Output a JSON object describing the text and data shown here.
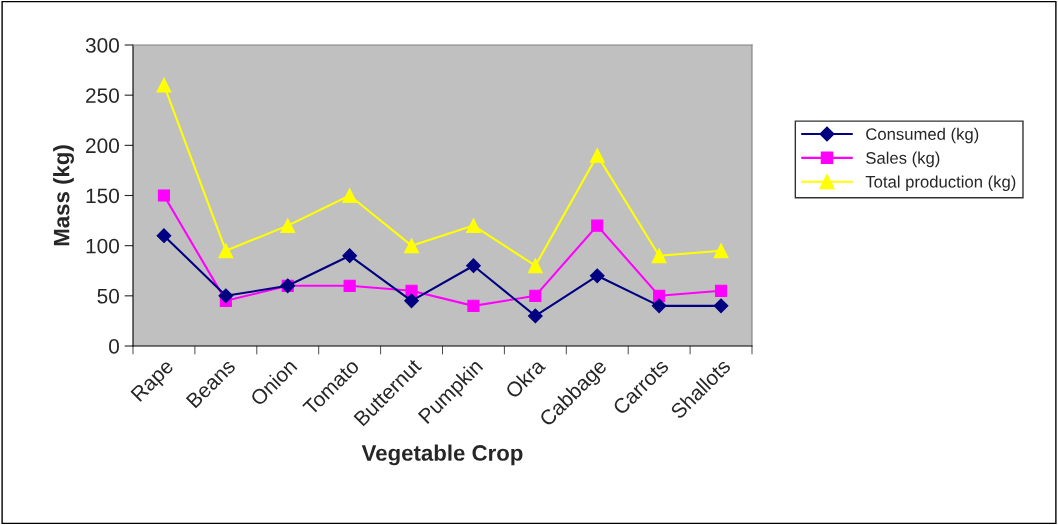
{
  "chart_data": {
    "type": "line",
    "xlabel": "Vegetable Crop",
    "ylabel": "Mass (kg)",
    "categories": [
      "Rape",
      "Beans",
      "Onion",
      "Tomato",
      "Butternut",
      "Pumpkin",
      "Okra",
      "Cabbage",
      "Carrots",
      "Shallots"
    ],
    "series": [
      {
        "name": "Consumed (kg)",
        "color": "#000080",
        "marker": "diamond",
        "values": [
          110,
          50,
          60,
          90,
          45,
          80,
          30,
          70,
          40,
          40
        ]
      },
      {
        "name": "Sales (kg)",
        "color": "#ff00ff",
        "marker": "square",
        "values": [
          150,
          45,
          60,
          60,
          55,
          40,
          50,
          120,
          50,
          55
        ]
      },
      {
        "name": "Total production (kg)",
        "color": "#ffff00",
        "marker": "triangle",
        "values": [
          260,
          95,
          120,
          150,
          100,
          120,
          80,
          190,
          90,
          95
        ]
      }
    ],
    "ylim": [
      0,
      300
    ],
    "yticks": [
      0,
      50,
      100,
      150,
      200,
      250,
      300
    ],
    "grid": false,
    "legend": "right",
    "line_style": "solid"
  }
}
